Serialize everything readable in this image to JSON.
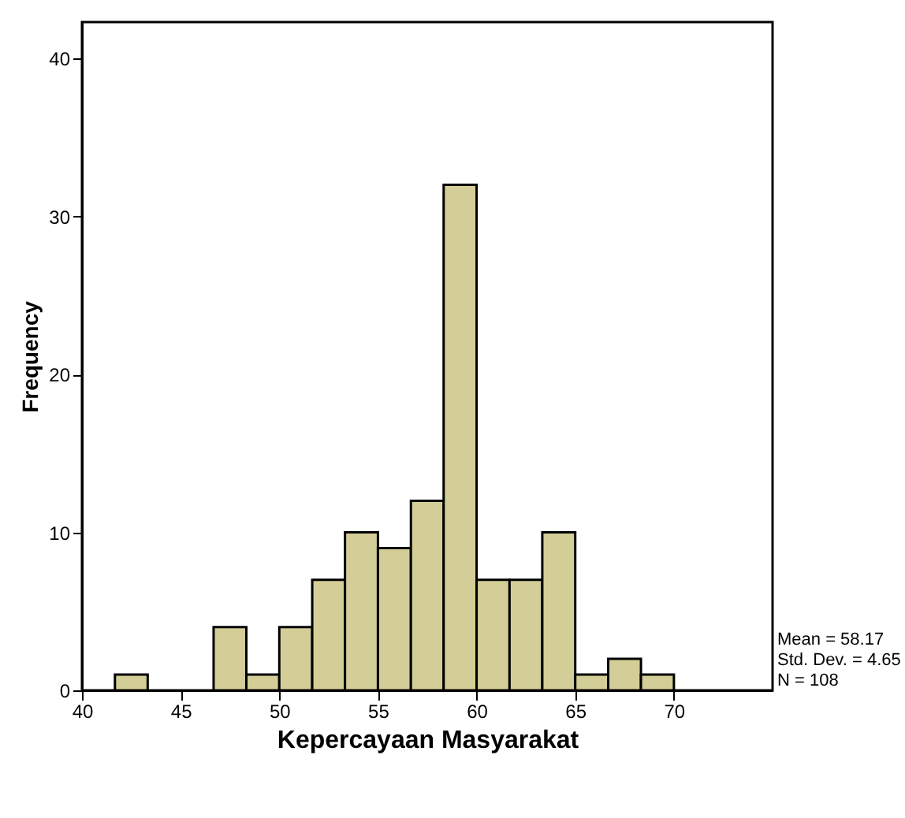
{
  "chart_data": {
    "type": "histogram",
    "xlabel": "Kepercayaan Masyarakat",
    "ylabel": "Frequency",
    "bins": [
      41.67,
      43.33,
      45,
      46.67,
      48.33,
      50,
      51.67,
      53.33,
      55,
      56.67,
      58.33,
      60,
      61.67,
      63.33,
      65,
      66.67,
      68.33,
      70
    ],
    "values": [
      1,
      0,
      0,
      4,
      1,
      4,
      7,
      10,
      9,
      12,
      32,
      7,
      7,
      10,
      1,
      2,
      1
    ],
    "color": "#d3ce97",
    "xlim": [
      40,
      75
    ],
    "xticks": [
      40,
      45,
      50,
      55,
      60,
      65,
      70
    ],
    "ylim": [
      0,
      42.3
    ],
    "yticks": [
      0,
      10,
      20,
      30,
      40
    ],
    "grid": false,
    "annotations": [
      "Mean = 58.17",
      "Std. Dev. = 4.65",
      "N = 108"
    ]
  }
}
